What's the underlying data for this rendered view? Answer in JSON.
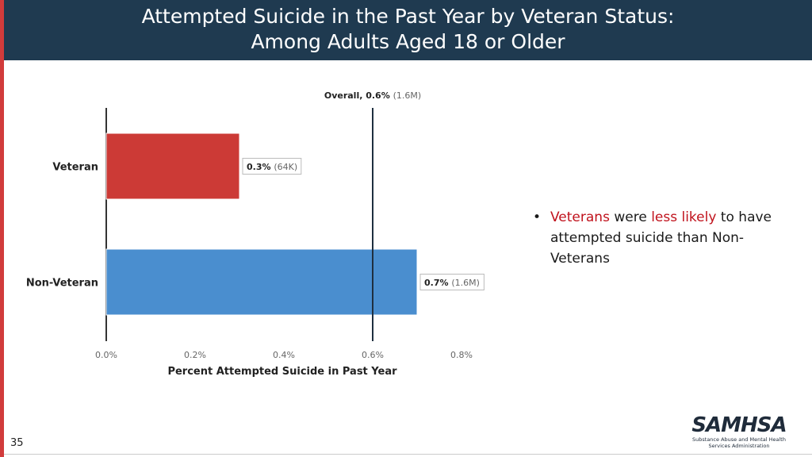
{
  "header": {
    "title_line1": "Attempted Suicide in the Past Year by Veteran Status:",
    "title_line2": "Among Adults Aged 18 or Older"
  },
  "bullet": {
    "part1": "Veterans",
    "part2": " were ",
    "part3": "less likely",
    "part4": " to have attempted suicide than Non-Veterans"
  },
  "page_number": "35",
  "logo": {
    "name": "SAMHSA",
    "subtitle_line1": "Substance Abuse and Mental Health",
    "subtitle_line2": "Services Administration"
  },
  "colors": {
    "header_bg": "#1f3a50",
    "veteran": "#cc3a36",
    "non_veteran": "#4a8ecf",
    "accent": "#d13b3b"
  },
  "chart_data": {
    "type": "bar",
    "orientation": "horizontal",
    "categories": [
      "Veteran",
      "Non-Veteran"
    ],
    "values": [
      0.3,
      0.7
    ],
    "value_labels": [
      {
        "pct": "0.3%",
        "count": "(64K)"
      },
      {
        "pct": "0.7%",
        "count": "(1.6M)"
      }
    ],
    "reference_line": {
      "value": 0.6,
      "label_bold": "Overall, 0.6%",
      "label_count": "(1.6M)"
    },
    "xlabel": "Percent Attempted Suicide in Past Year",
    "ylabel": "",
    "xlim": [
      0,
      0.8
    ],
    "ticks": [
      0,
      0.2,
      0.4,
      0.6,
      0.8
    ],
    "tick_labels": [
      "0.0%",
      "0.2%",
      "0.4%",
      "0.6%",
      "0.8%"
    ],
    "grid": false
  }
}
